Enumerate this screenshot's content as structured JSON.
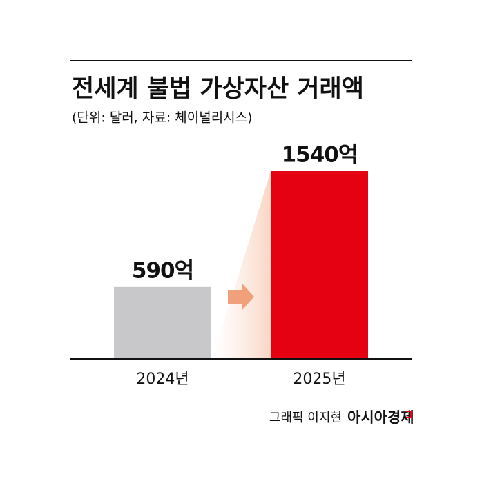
{
  "chart_data": {
    "type": "bar",
    "title": "전세계 불법 가상자산 거래액",
    "subtitle": "(단위: 달러, 자료: 체이널리시스)",
    "categories": [
      "2024년",
      "2025년"
    ],
    "values": [
      590,
      1540
    ],
    "value_labels": [
      "590억",
      "1540억"
    ],
    "colors": [
      "#c8c8ca",
      "#e50012"
    ],
    "credit": "그래픽 이지현",
    "source": "아시아경제"
  }
}
